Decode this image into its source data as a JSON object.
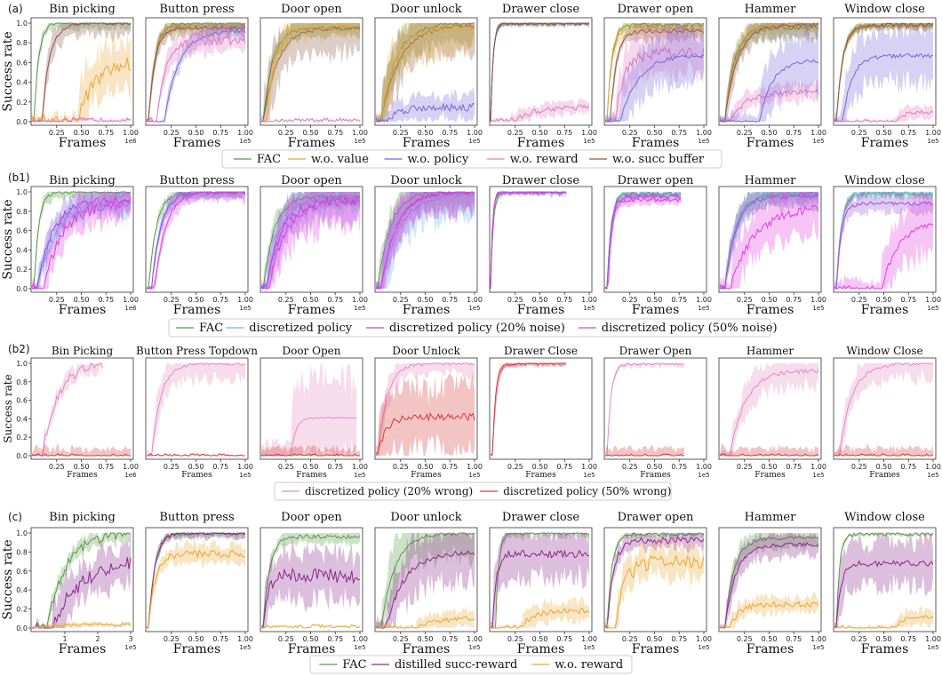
{
  "figure": {
    "rows": [
      {
        "label": "(a)",
        "ylabel": "Success rate",
        "legend": [
          "FAC",
          "w.o. value",
          "w.o. policy",
          "w.o. reward",
          "w.o. succ buffer"
        ],
        "panels": [
          {
            "title": "Bin picking",
            "xlabel": "Frames",
            "xticks": [
              "0.25",
              "0.50",
              "0.75",
              "1.00"
            ],
            "xmax": 1.0,
            "exp": "1e6"
          },
          {
            "title": "Button press",
            "xlabel": "Frames",
            "xticks": [
              "0.25",
              "0.50",
              "0.75",
              "1.00"
            ],
            "xmax": 1.0,
            "exp": "1e5"
          },
          {
            "title": "Door open",
            "xlabel": "Frames",
            "xticks": [
              "0.25",
              "0.50",
              "0.75",
              "1.00"
            ],
            "xmax": 1.0,
            "exp": "1e5"
          },
          {
            "title": "Door unlock",
            "xlabel": "Frames",
            "xticks": [
              "0.25",
              "0.50",
              "0.75",
              "1.00"
            ],
            "xmax": 1.0,
            "exp": "1e5"
          },
          {
            "title": "Drawer close",
            "xlabel": "Frames",
            "xticks": [
              "0.25",
              "0.50",
              "0.75",
              "1.00"
            ],
            "xmax": 1.0,
            "exp": "1e5"
          },
          {
            "title": "Drawer open",
            "xlabel": "Frames",
            "xticks": [
              "0.25",
              "0.50",
              "0.75",
              "1.00"
            ],
            "xmax": 1.0,
            "exp": "1e5"
          },
          {
            "title": "Hammer",
            "xlabel": "Frames",
            "xticks": [
              "0.25",
              "0.50",
              "0.75",
              "1.00"
            ],
            "xmax": 1.0,
            "exp": "1e5"
          },
          {
            "title": "Window close",
            "xlabel": "Frames",
            "xticks": [
              "0.25",
              "0.50",
              "0.75",
              "1.00"
            ],
            "xmax": 1.0,
            "exp": "1e5"
          }
        ]
      },
      {
        "label": "(b1)",
        "ylabel": "Success rate",
        "legend": [
          "FAC",
          "discretized policy",
          "discretized policy (20% noise)",
          "discretized policy (50% noise)"
        ],
        "panels": [
          {
            "title": "Bin picking",
            "xlabel": "Frames",
            "xticks": [
              "0.25",
              "0.50",
              "0.75",
              "1.00"
            ],
            "xmax": 1.0,
            "exp": "1e6"
          },
          {
            "title": "Button press",
            "xlabel": "Frames",
            "xticks": [
              "0.25",
              "0.50",
              "0.75",
              "1.00"
            ],
            "xmax": 1.0,
            "exp": "1e5"
          },
          {
            "title": "Door open",
            "xlabel": "Frames",
            "xticks": [
              "0.25",
              "0.50",
              "0.75",
              "1.00"
            ],
            "xmax": 1.0,
            "exp": "1e5"
          },
          {
            "title": "Door unlock",
            "xlabel": "Frames",
            "xticks": [
              "0.25",
              "0.50",
              "0.75",
              "1.00"
            ],
            "xmax": 1.0,
            "exp": "1e5"
          },
          {
            "title": "Drawer close",
            "xlabel": "Frames",
            "xticks": [
              "0.25",
              "0.50",
              "0.75",
              "1.00"
            ],
            "xmax": 1.0,
            "exp": "1e5"
          },
          {
            "title": "Drawer open",
            "xlabel": "Frames",
            "xticks": [
              "0.25",
              "0.50",
              "0.75",
              "1.00"
            ],
            "xmax": 1.0,
            "exp": "1e5"
          },
          {
            "title": "Hammer",
            "xlabel": "Frames",
            "xticks": [
              "0.25",
              "0.50",
              "0.75",
              "1.00"
            ],
            "xmax": 1.0,
            "exp": "1e5"
          },
          {
            "title": "Window close",
            "xlabel": "Frames",
            "xticks": [
              "0.25",
              "0.50",
              "0.75",
              "1.00"
            ],
            "xmax": 1.0,
            "exp": "1e5"
          }
        ]
      },
      {
        "label": "(b2)",
        "ylabel": "Success rate",
        "legend": [
          "discretized policy (20% wrong)",
          "discretized policy (50% wrong)"
        ],
        "panels": [
          {
            "title": "Bin Picking",
            "xlabel": "Frames",
            "xticks": [
              "0.25",
              "0.50",
              "0.75",
              "1.00"
            ],
            "xmax": 1.0,
            "exp": "1e6"
          },
          {
            "title": "Button Press Topdown",
            "xlabel": "Frames",
            "xticks": [
              "0.25",
              "0.50",
              "0.75",
              "1.00"
            ],
            "xmax": 1.0,
            "exp": "1e5"
          },
          {
            "title": "Door Open",
            "xlabel": "Frames",
            "xticks": [
              "0.25",
              "0.50",
              "0.75",
              "1.00"
            ],
            "xmax": 1.0,
            "exp": "1e5"
          },
          {
            "title": "Door Unlock",
            "xlabel": "Frames",
            "xticks": [
              "0.25",
              "0.50",
              "0.75",
              "1.00"
            ],
            "xmax": 1.0,
            "exp": "1e5"
          },
          {
            "title": "Drawer Close",
            "xlabel": "Frames",
            "xticks": [
              "0.25",
              "0.50",
              "0.75",
              "1.00"
            ],
            "xmax": 1.0,
            "exp": "1e5"
          },
          {
            "title": "Drawer Open",
            "xlabel": "Frames",
            "xticks": [
              "0.25",
              "0.50",
              "0.75",
              "1.00"
            ],
            "xmax": 1.0,
            "exp": "1e5"
          },
          {
            "title": "Hammer",
            "xlabel": "Frames",
            "xticks": [
              "0.25",
              "0.50",
              "0.75",
              "1.00"
            ],
            "xmax": 1.0,
            "exp": "1e5"
          },
          {
            "title": "Window Close",
            "xlabel": "Frames",
            "xticks": [
              "0.25",
              "0.50",
              "0.75",
              "1.00"
            ],
            "xmax": 1.0,
            "exp": "1e5"
          }
        ]
      },
      {
        "label": "(c)",
        "ylabel": "Success rate",
        "legend": [
          "FAC",
          "distilled succ-reward",
          "w.o. reward"
        ],
        "panels": [
          {
            "title": "Bin picking",
            "xlabel": "Frames",
            "xticks": [
              "1",
              "2",
              "3"
            ],
            "xmax": 3.0,
            "exp": "1e5"
          },
          {
            "title": "Button press",
            "xlabel": "Frames",
            "xticks": [
              "0.25",
              "0.50",
              "0.75",
              "1.00"
            ],
            "xmax": 1.0,
            "exp": "1e5"
          },
          {
            "title": "Door open",
            "xlabel": "Frames",
            "xticks": [
              "0.25",
              "0.50",
              "0.75",
              "1.00"
            ],
            "xmax": 1.0,
            "exp": "1e5"
          },
          {
            "title": "Door unlock",
            "xlabel": "Frames",
            "xticks": [
              "0.25",
              "0.50",
              "0.75",
              "1.00"
            ],
            "xmax": 1.0,
            "exp": "1e5"
          },
          {
            "title": "Drawer close",
            "xlabel": "Frames",
            "xticks": [
              "0.25",
              "0.50",
              "0.75",
              "1.00"
            ],
            "xmax": 1.0,
            "exp": "1e5"
          },
          {
            "title": "Drawer open",
            "xlabel": "Frames",
            "xticks": [
              "0.25",
              "0.50",
              "0.75",
              "1.00"
            ],
            "xmax": 1.0,
            "exp": "1e5"
          },
          {
            "title": "Hammer",
            "xlabel": "Frames",
            "xticks": [
              "0.25",
              "0.50",
              "0.75",
              "1.00"
            ],
            "xmax": 1.0,
            "exp": "1e5"
          },
          {
            "title": "Window close",
            "xlabel": "Frames",
            "xticks": [
              "0.25",
              "0.50",
              "0.75",
              "1.00"
            ],
            "xmax": 1.0,
            "exp": "1e5"
          }
        ]
      }
    ],
    "yticks": [
      "0.0",
      "0.2",
      "0.4",
      "0.6",
      "0.8",
      "1.0"
    ],
    "colors": {
      "FAC": "#5a9a4a",
      "w.o. value": "#e8a838",
      "w.o. policy": "#7b68d6",
      "w.o. reward": "#e07cc0",
      "w.o. succ buffer": "#8b5a4a",
      "discretized policy": "#6ab8e8",
      "discretized policy (20% noise)": "#9b4fd8",
      "discretized policy (50% noise)": "#e040e0",
      "discretized policy (20% wrong)": "#e48cc0",
      "discretized policy (50% wrong)": "#d63a3a",
      "distilled succ-reward": "#8a2a8a",
      "w.o. reward (c)": "#e8a838"
    }
  },
  "chart_data": [
    {
      "type": "line",
      "title": "Bin picking",
      "xlabel": "Frames",
      "ylabel": "Success rate",
      "ylim": [
        0,
        1
      ],
      "series": [
        {
          "name": "FAC",
          "x": [
            0,
            0.1,
            0.15,
            0.2,
            0.25,
            0.3
          ],
          "y": [
            0,
            0.1,
            0.5,
            0.85,
            0.98,
            1.0
          ]
        },
        {
          "name": "w.o. value",
          "x": [
            0.4,
            0.5,
            0.6,
            0.75,
            0.9,
            1.0
          ],
          "y": [
            0,
            0.1,
            0.3,
            0.45,
            0.55,
            0.6
          ]
        },
        {
          "name": "w.o. succ buffer",
          "x": [
            0.1,
            0.2,
            0.3,
            0.45,
            0.6,
            0.8,
            1.0
          ],
          "y": [
            0.1,
            0.7,
            0.82,
            0.9,
            0.94,
            0.98,
            1.0
          ]
        }
      ]
    },
    {
      "type": "line",
      "title": "Bin picking",
      "xlabel": "Frames",
      "ylabel": "Success rate",
      "ylim": [
        0,
        1
      ],
      "series": [
        {
          "name": "FAC",
          "x": [
            0,
            0.1,
            0.2,
            0.3
          ],
          "y": [
            0,
            0.3,
            0.9,
            1.0
          ]
        },
        {
          "name": "discretized policy (20% noise)",
          "x": [
            0,
            0.2,
            0.4,
            0.6,
            0.8,
            1.0
          ],
          "y": [
            0,
            0.3,
            0.6,
            0.8,
            0.9,
            0.95
          ]
        },
        {
          "name": "discretized policy (50% noise)",
          "x": [
            0,
            0.2,
            0.4,
            0.6,
            0.8,
            1.0
          ],
          "y": [
            0,
            0.15,
            0.45,
            0.7,
            0.85,
            0.9
          ]
        }
      ]
    },
    {
      "type": "line",
      "title": "Door Unlock",
      "xlabel": "Frames",
      "ylabel": "Success rate",
      "ylim": [
        0,
        1
      ],
      "series": [
        {
          "name": "discretized policy (20% wrong)",
          "x": [
            0,
            0.1,
            0.2,
            0.4,
            0.6,
            0.8,
            1.0
          ],
          "y": [
            0,
            0.3,
            0.8,
            0.95,
            0.98,
            1.0,
            1.0
          ]
        },
        {
          "name": "discretized policy (50% wrong)",
          "x": [
            0,
            0.1,
            0.2,
            0.4,
            0.6,
            0.8,
            1.0
          ],
          "y": [
            0,
            0.15,
            0.35,
            0.4,
            0.38,
            0.42,
            0.52
          ]
        }
      ]
    },
    {
      "type": "line",
      "title": "Door open",
      "xlabel": "Frames",
      "ylabel": "Success rate",
      "ylim": [
        0,
        1
      ],
      "series": [
        {
          "name": "FAC",
          "x": [
            0,
            0.1,
            0.2,
            0.4,
            0.6,
            0.8,
            1.0
          ],
          "y": [
            0,
            0.5,
            0.9,
            0.97,
            0.98,
            0.97,
            0.98
          ]
        },
        {
          "name": "distilled succ-reward",
          "x": [
            0,
            0.1,
            0.2,
            0.4,
            0.6,
            0.8,
            1.0
          ],
          "y": [
            0,
            0.3,
            0.6,
            0.5,
            0.55,
            0.65,
            0.48
          ]
        },
        {
          "name": "w.o. reward",
          "x": [
            0,
            1.0
          ],
          "y": [
            0,
            0
          ]
        }
      ]
    }
  ]
}
